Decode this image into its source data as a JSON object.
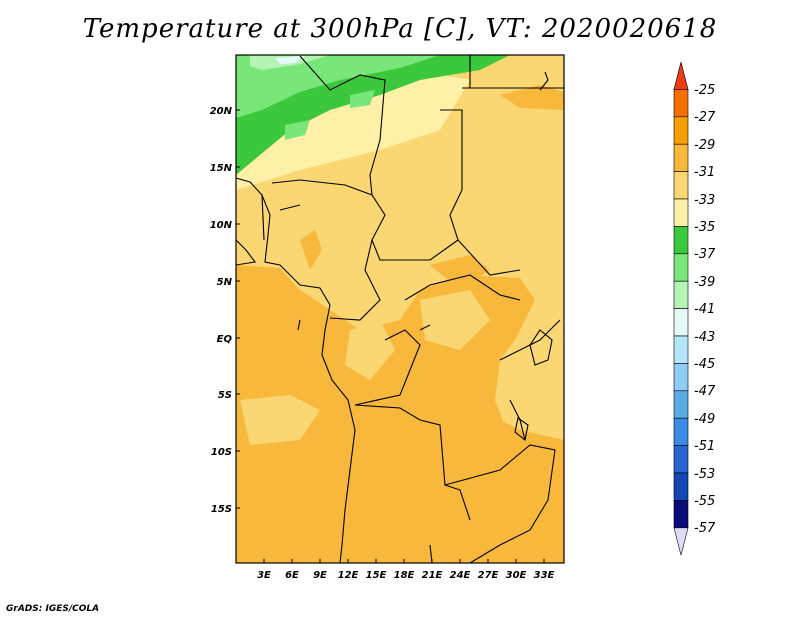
{
  "title": "Temperature at 300hPa [C], VT: 2020020618",
  "credit": "GrADS: IGES/COLA",
  "map": {
    "lat_labels": [
      "20N",
      "15N",
      "10N",
      "5N",
      "EQ",
      "5S",
      "10S",
      "15S"
    ],
    "lon_labels": [
      "3E",
      "6E",
      "9E",
      "12E",
      "15E",
      "18E",
      "21E",
      "24E",
      "27E",
      "30E",
      "33E"
    ]
  },
  "colorbar": {
    "labels": [
      "-25",
      "-27",
      "-29",
      "-31",
      "-33",
      "-35",
      "-37",
      "-39",
      "-41",
      "-43",
      "-45",
      "-47",
      "-49",
      "-51",
      "-53",
      "-55",
      "-57"
    ],
    "colors": [
      "#f03c14",
      "#f56e00",
      "#f5a000",
      "#f8b83c",
      "#fbd774",
      "#fff0a8",
      "#3cc83c",
      "#78e678",
      "#b4f5b4",
      "#e6fafa",
      "#b4e6fa",
      "#8ccdf5",
      "#5aaae6",
      "#3c8ce6",
      "#2864d2",
      "#1446b4",
      "#0a0a78",
      "#e0dcf5"
    ]
  }
}
